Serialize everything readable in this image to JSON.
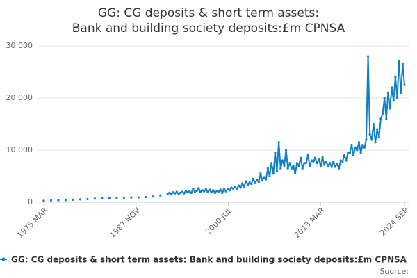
{
  "chart_data": {
    "type": "line",
    "title": "GG: CG deposits & short term assets: Bank and building society deposits:£m CPNSA",
    "source": "Source:",
    "x": [
      "1975 MAR",
      "1976 MAR",
      "1977 MAR",
      "1978 MAR",
      "1979 MAR",
      "1980 MAR",
      "1981 MAR",
      "1982 MAR",
      "1983 MAR",
      "1984 MAR",
      "1985 MAR",
      "1986 MAR",
      "1987 MAR",
      "1988 MAR",
      "1989 MAR",
      "1990 MAR",
      "1991 MAR",
      "1992 MAR",
      "1992 JUN",
      "1992 SEP",
      "1992 DEC",
      "1993 MAR",
      "1993 JUN",
      "1993 SEP",
      "1993 DEC",
      "1994 MAR",
      "1994 JUN",
      "1994 SEP",
      "1994 DEC",
      "1995 MAR",
      "1995 JUN",
      "1995 SEP",
      "1995 DEC",
      "1996 MAR",
      "1996 JUN",
      "1996 SEP",
      "1996 DEC",
      "1997 MAR",
      "1997 JUN",
      "1997 SEP",
      "1997 DEC",
      "1998 MAR",
      "1998 JUN",
      "1998 SEP",
      "1998 DEC",
      "1999 MAR",
      "1999 JUN",
      "1999 SEP",
      "1999 DEC",
      "2000 MAR",
      "2000 JUN",
      "2000 SEP",
      "2000 DEC",
      "2001 MAR",
      "2001 JUN",
      "2001 SEP",
      "2001 DEC",
      "2002 MAR",
      "2002 JUN",
      "2002 SEP",
      "2002 DEC",
      "2003 MAR",
      "2003 JUN",
      "2003 SEP",
      "2003 DEC",
      "2004 MAR",
      "2004 JUN",
      "2004 SEP",
      "2004 DEC",
      "2005 MAR",
      "2005 JUN",
      "2005 SEP",
      "2005 DEC",
      "2006 MAR",
      "2006 JUN",
      "2006 SEP",
      "2006 DEC",
      "2007 MAR",
      "2007 JUN",
      "2007 SEP",
      "2007 DEC",
      "2008 MAR",
      "2008 JUN",
      "2008 SEP",
      "2008 DEC",
      "2009 MAR",
      "2009 JUN",
      "2009 SEP",
      "2009 DEC",
      "2010 MAR",
      "2010 JUN",
      "2010 SEP",
      "2010 DEC",
      "2011 MAR",
      "2011 JUN",
      "2011 SEP",
      "2011 DEC",
      "2012 MAR",
      "2012 JUN",
      "2012 SEP",
      "2012 DEC",
      "2013 MAR",
      "2013 JUN",
      "2013 SEP",
      "2013 DEC",
      "2014 MAR",
      "2014 JUN",
      "2014 SEP",
      "2014 DEC",
      "2015 MAR",
      "2015 JUN",
      "2015 SEP",
      "2015 DEC",
      "2016 MAR",
      "2016 JUN",
      "2016 SEP",
      "2016 DEC",
      "2017 MAR",
      "2017 JUN",
      "2017 SEP",
      "2017 DEC",
      "2018 MAR",
      "2018 JUN",
      "2018 SEP",
      "2018 DEC",
      "2019 MAR",
      "2019 JUN",
      "2019 SEP",
      "2019 DEC",
      "2020 MAR",
      "2020 JUN",
      "2020 SEP",
      "2020 DEC",
      "2021 MAR",
      "2021 JUN",
      "2021 SEP",
      "2021 DEC",
      "2022 MAR",
      "2022 JUN",
      "2022 SEP",
      "2022 DEC",
      "2023 MAR",
      "2023 JUN",
      "2023 SEP",
      "2023 DEC",
      "2024 MAR",
      "2024 JUN",
      "2024 SEP"
    ],
    "series": [
      {
        "name": "GG: CG deposits & short term assets: Bank and building society deposits:£m CPNSA",
        "color": "#0e7fc4",
        "values": [
          300,
          350,
          380,
          420,
          480,
          550,
          620,
          700,
          760,
          800,
          820,
          850,
          900,
          950,
          1000,
          1100,
          1300,
          1600,
          1800,
          1500,
          1900,
          1700,
          2000,
          1600,
          1800,
          2000,
          1700,
          2200,
          1900,
          2100,
          1800,
          2600,
          2000,
          2200,
          2700,
          2000,
          2300,
          2100,
          2500,
          2000,
          2400,
          1900,
          2300,
          1800,
          2200,
          2000,
          2400,
          1800,
          2600,
          2100,
          2500,
          2300,
          2800,
          2600,
          3000,
          2500,
          3200,
          2800,
          3600,
          3000,
          4000,
          3300,
          3800,
          3500,
          4500,
          3700,
          4300,
          3900,
          5500,
          4200,
          4800,
          4400,
          6500,
          5000,
          7500,
          5500,
          9500,
          6000,
          11500,
          6500,
          8000,
          7000,
          10000,
          6500,
          7500,
          6500,
          7000,
          5500,
          7500,
          7000,
          8500,
          6500,
          7500,
          7500,
          9000,
          7000,
          8000,
          7800,
          8500,
          7500,
          8200,
          7000,
          8600,
          7200,
          7800,
          7000,
          7500,
          6800,
          7700,
          6800,
          7400,
          6500,
          8000,
          7800,
          9000,
          8000,
          9500,
          9500,
          11000,
          9000,
          10500,
          10000,
          11500,
          9500,
          11000,
          10500,
          12000,
          28000,
          13000,
          12000,
          15000,
          11500,
          14000,
          12500,
          16000,
          17000,
          20000,
          16000,
          21000,
          18000,
          22000,
          19500,
          24000,
          20000,
          27000,
          21000,
          26500,
          22500
        ]
      }
    ],
    "xticks": [
      "1975 MAR",
      "1987 NOV",
      "2000 JUL",
      "2013 MAR",
      "2024 SEP"
    ],
    "ylim": [
      0,
      30000
    ],
    "yticks": [
      0,
      {
        "value": 10000,
        "label": "10 000"
      },
      {
        "value": 20000,
        "label": "20 000"
      },
      {
        "value": 30000,
        "label": "30 000"
      }
    ],
    "grid": true
  }
}
